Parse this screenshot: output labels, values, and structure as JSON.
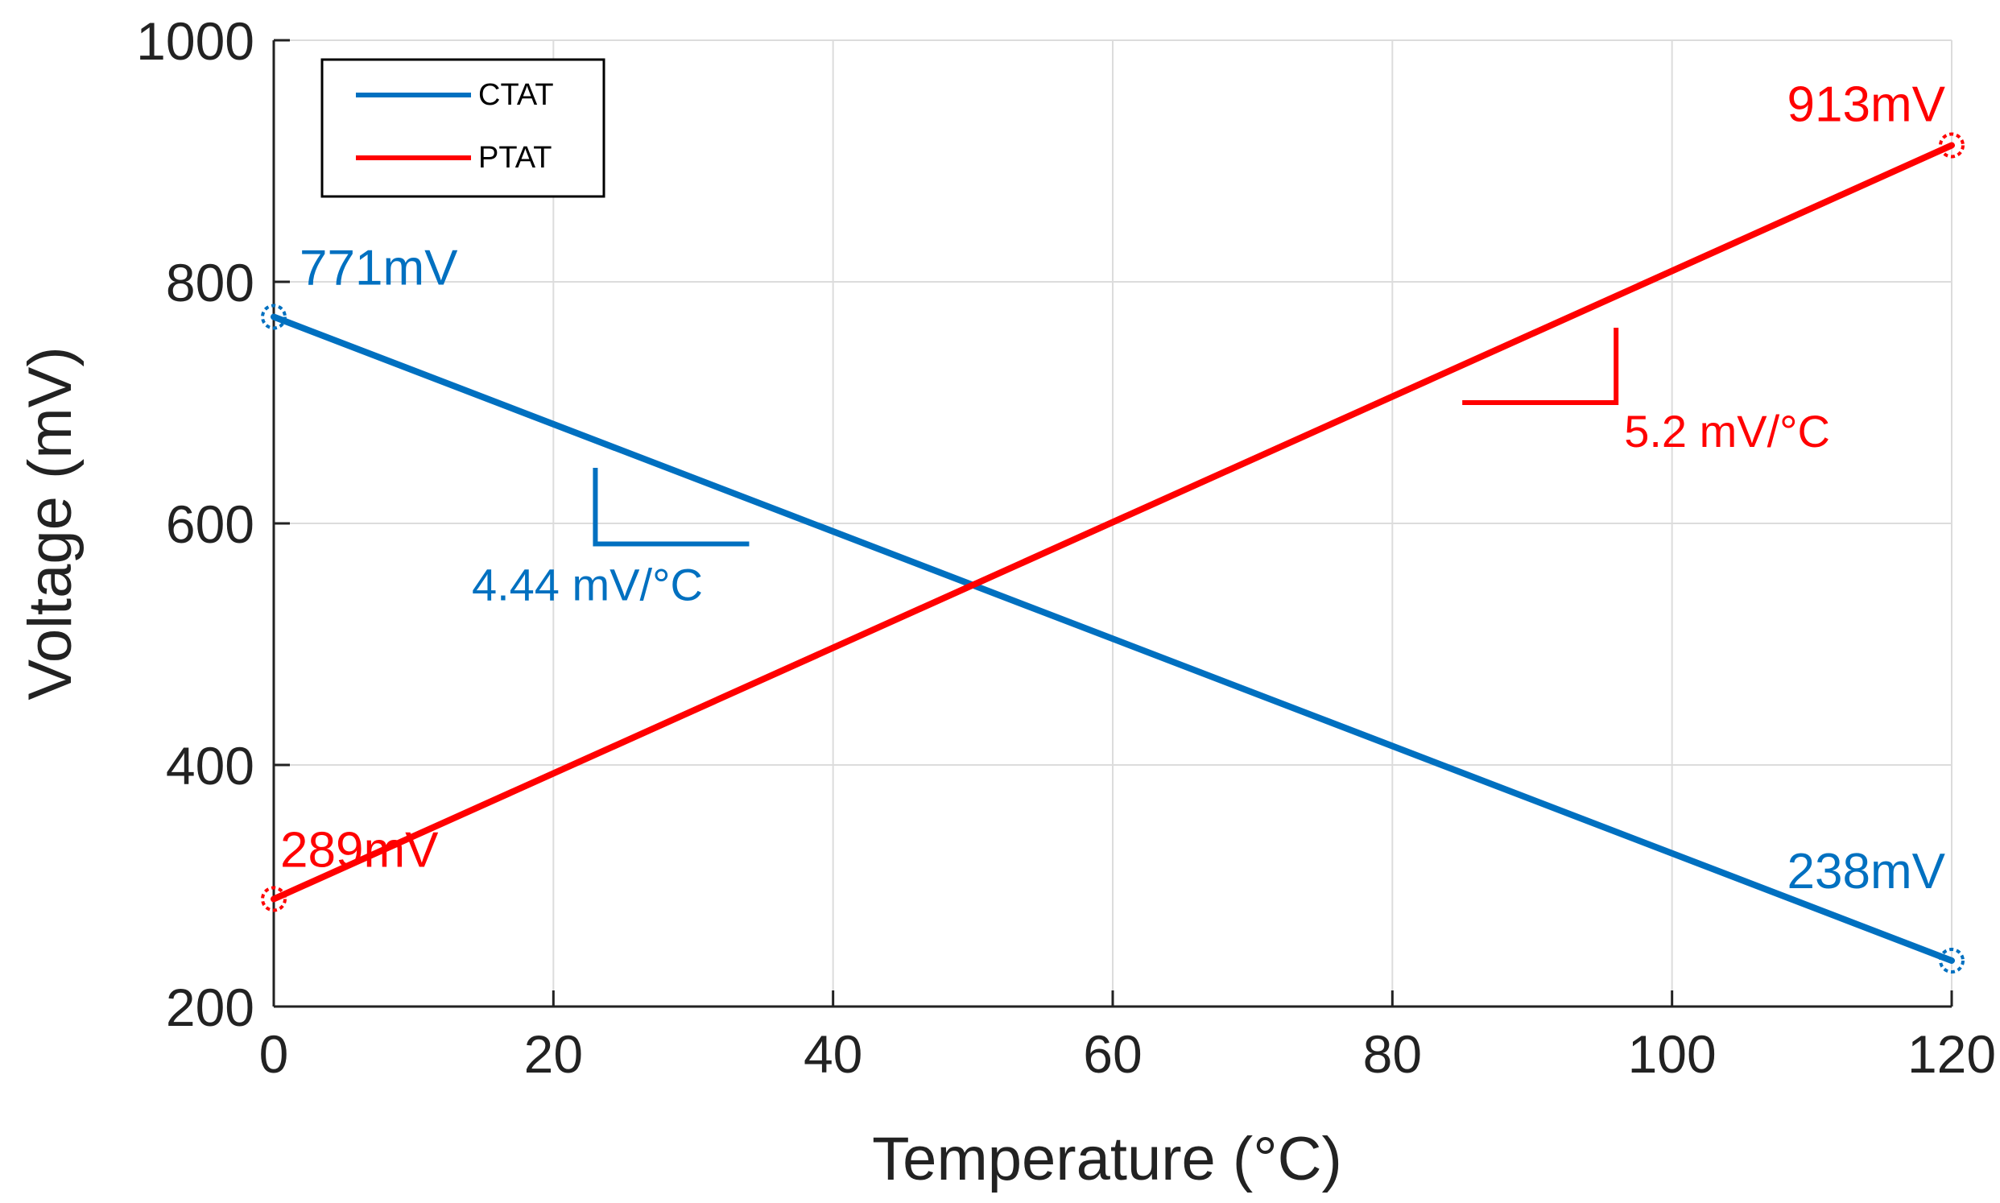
{
  "chart_data": {
    "type": "line",
    "xlabel": "Temperature (°C)",
    "ylabel": "Voltage (mV)",
    "xlim": [
      0,
      120
    ],
    "ylim": [
      200,
      1000
    ],
    "xticks": [
      0,
      20,
      40,
      60,
      80,
      100,
      120
    ],
    "yticks": [
      200,
      400,
      600,
      800,
      1000
    ],
    "grid": true,
    "legend_position": "top-left",
    "series": [
      {
        "name": "CTAT",
        "color": "#0070C0",
        "x": [
          0,
          120
        ],
        "y": [
          771,
          238
        ]
      },
      {
        "name": "PTAT",
        "color": "#FF0000",
        "x": [
          0,
          120
        ],
        "y": [
          289,
          913
        ]
      }
    ],
    "endpoint_labels": [
      {
        "text": "771mV",
        "x": 0,
        "y": 771,
        "color": "#0070C0"
      },
      {
        "text": "238mV",
        "x": 120,
        "y": 238,
        "color": "#0070C0"
      },
      {
        "text": "289mV",
        "x": 0,
        "y": 289,
        "color": "#FF0000"
      },
      {
        "text": "913mV",
        "x": 120,
        "y": 913,
        "color": "#FF0000"
      }
    ],
    "slope_annotations": [
      {
        "text": "4.44 mV/°C",
        "color": "#0070C0",
        "corner_x": 23,
        "corner_y": 583,
        "x_end": 34,
        "y_end": 646
      },
      {
        "text": "5.2 mV/°C",
        "color": "#FF0000",
        "corner_x": 96,
        "corner_y": 700,
        "x_end": 85,
        "y_end": 762
      }
    ]
  }
}
